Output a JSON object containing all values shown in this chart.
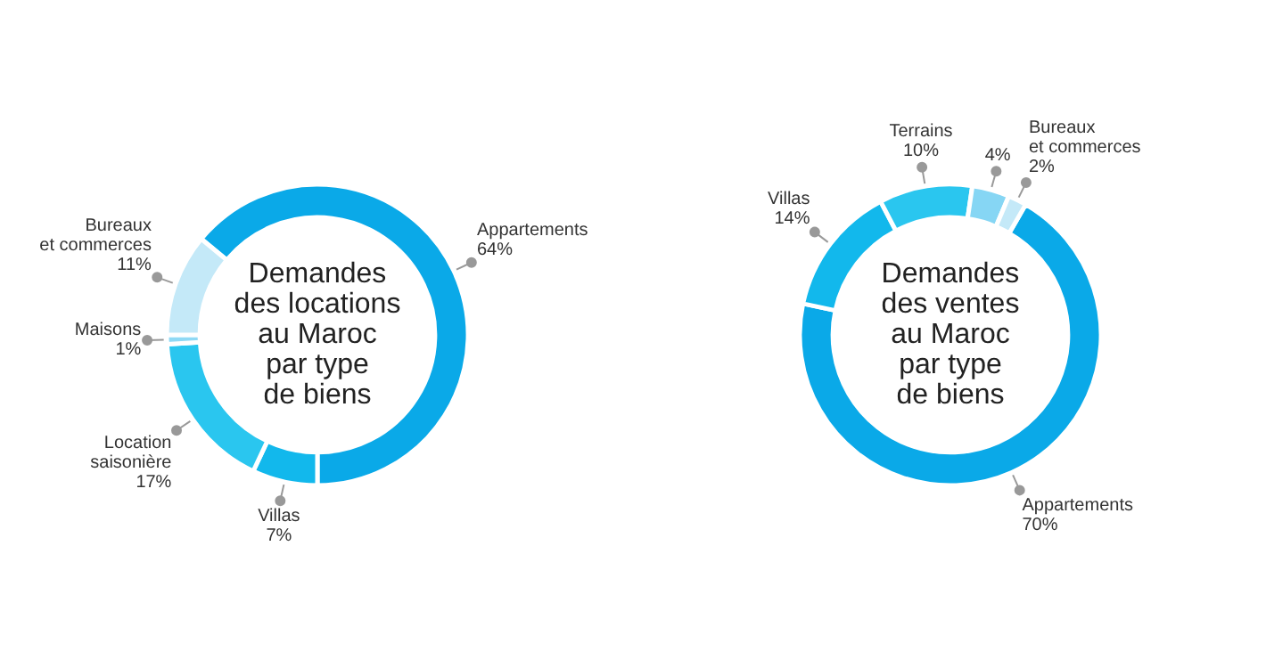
{
  "chart_data": [
    {
      "type": "donut",
      "title": "Demandes\ndes locations\nau Maroc\npar type\nde biens",
      "categories": [
        "Appartements",
        "Villas",
        "Location\nsaisonière",
        "Maisons",
        "Bureaux\net commerces"
      ],
      "values": [
        64,
        7,
        17,
        1,
        11
      ],
      "value_labels": [
        "64%",
        "7%",
        "17%",
        "1%",
        "11%"
      ],
      "colors": [
        "#0aa9e8",
        "#12b8ec",
        "#2ac6ef",
        "#8fd9f5",
        "#c4e9f8"
      ]
    },
    {
      "type": "donut",
      "title": "Demandes\ndes ventes\nau Maroc\npar type\nde biens",
      "categories": [
        "Appartements",
        "Villas",
        "Terrains",
        null,
        "Bureaux\net commerces"
      ],
      "values": [
        70,
        14,
        10,
        4,
        2
      ],
      "value_labels": [
        "70%",
        "14%",
        "10%",
        "4%",
        "2%"
      ],
      "colors": [
        "#0aa9e8",
        "#12b8ec",
        "#2ac6ef",
        "#86d6f4",
        "#c4e9f8"
      ]
    }
  ]
}
